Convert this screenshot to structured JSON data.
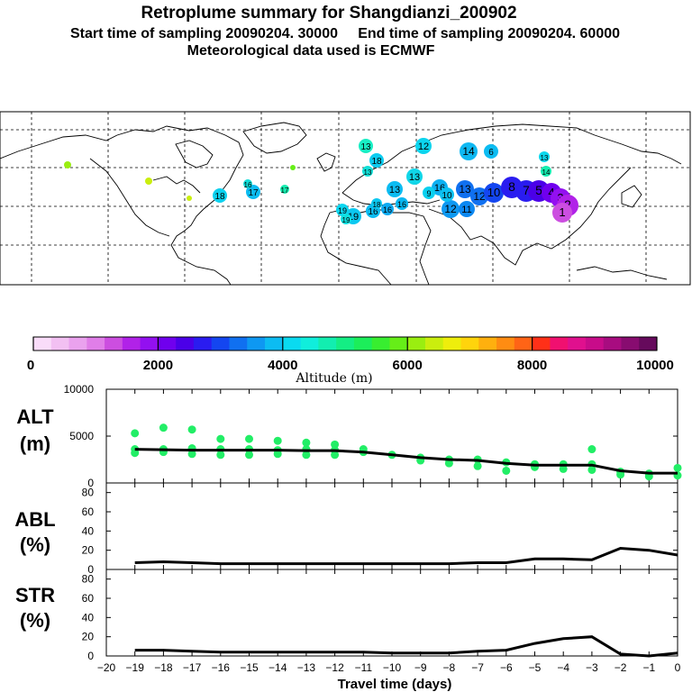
{
  "header": {
    "title": "Retroplume summary for Shangdianzi_200902",
    "line2": "Start time of sampling 20090204. 30000     End time of sampling 20090204. 60000",
    "line3": "Meteorological data used is ECMWF"
  },
  "colors": {
    "altitude_dot": "#22ee66",
    "line": "#000000",
    "colorbar": [
      "#f9dcf9",
      "#f2c0f2",
      "#eaa2ee",
      "#e07ee8",
      "#cc4ee0",
      "#b122e8",
      "#9310f0",
      "#7000ee",
      "#4b00e8",
      "#2a1cf0",
      "#1446f0",
      "#1070f0",
      "#0e98f2",
      "#0cbcf2",
      "#0adaf0",
      "#10eedc",
      "#12eeb0",
      "#14ee84",
      "#1cee5a",
      "#38ee30",
      "#66ee18",
      "#9aee10",
      "#caee0e",
      "#eeee0c",
      "#ffd40c",
      "#ffb00e",
      "#ff8c12",
      "#ff6416",
      "#ff3018",
      "#f01070",
      "#e0108e",
      "#c80c8a",
      "#a80c80",
      "#880c70",
      "#660a5c"
    ]
  },
  "colorbar": {
    "ticks": [
      "0",
      "2000",
      "4000",
      "6000",
      "8000",
      "10000"
    ],
    "label": "Altitude (m)"
  },
  "map": {
    "labels": [
      "13",
      "12",
      "14",
      "6",
      "18",
      "13",
      "17",
      "17",
      "16",
      "18",
      "13",
      "19",
      "16",
      "16",
      "13",
      "16",
      "12",
      "11",
      "13",
      "12",
      "10",
      "8",
      "7",
      "5",
      "4",
      "3",
      "2",
      "1",
      "10",
      "9",
      "19",
      "19",
      "18",
      "16",
      "14",
      "13"
    ]
  },
  "chart_data": [
    {
      "type": "scatter",
      "name": "ALT",
      "panel_label": "ALT",
      "panel_unit": "(m)",
      "ylim": [
        0,
        10000
      ],
      "yticks": [
        "0",
        "5000",
        "10000"
      ],
      "x": [
        -19,
        -18,
        -17,
        -16,
        -15,
        -14,
        -13,
        -12,
        -11,
        -10,
        -9,
        -8,
        -7,
        -6,
        -5,
        -4,
        -3,
        -2,
        -1,
        0
      ],
      "line": [
        3600,
        3550,
        3500,
        3500,
        3500,
        3500,
        3450,
        3450,
        3300,
        3000,
        2700,
        2500,
        2400,
        2100,
        1900,
        1900,
        1900,
        1300,
        1050,
        1050
      ],
      "points": [
        {
          "x": -19,
          "y": 5300
        },
        {
          "x": -19,
          "y": 3600
        },
        {
          "x": -19,
          "y": 3200
        },
        {
          "x": -18,
          "y": 5900
        },
        {
          "x": -18,
          "y": 3600
        },
        {
          "x": -18,
          "y": 3300
        },
        {
          "x": -17,
          "y": 5700
        },
        {
          "x": -17,
          "y": 3700
        },
        {
          "x": -17,
          "y": 3100
        },
        {
          "x": -16,
          "y": 4700
        },
        {
          "x": -16,
          "y": 3600
        },
        {
          "x": -16,
          "y": 3000
        },
        {
          "x": -15,
          "y": 4700
        },
        {
          "x": -15,
          "y": 3600
        },
        {
          "x": -15,
          "y": 3000
        },
        {
          "x": -14,
          "y": 4500
        },
        {
          "x": -14,
          "y": 3500
        },
        {
          "x": -14,
          "y": 3100
        },
        {
          "x": -13,
          "y": 4300
        },
        {
          "x": -13,
          "y": 3600
        },
        {
          "x": -13,
          "y": 3000
        },
        {
          "x": -12,
          "y": 4100
        },
        {
          "x": -12,
          "y": 3500
        },
        {
          "x": -12,
          "y": 3000
        },
        {
          "x": -11,
          "y": 3300
        },
        {
          "x": -11,
          "y": 3600
        },
        {
          "x": -10,
          "y": 3000
        },
        {
          "x": -9,
          "y": 2700
        },
        {
          "x": -9,
          "y": 2400
        },
        {
          "x": -8,
          "y": 2500
        },
        {
          "x": -8,
          "y": 2100
        },
        {
          "x": -7,
          "y": 2500
        },
        {
          "x": -7,
          "y": 1800
        },
        {
          "x": -6,
          "y": 2200
        },
        {
          "x": -6,
          "y": 1300
        },
        {
          "x": -5,
          "y": 2000
        },
        {
          "x": -5,
          "y": 1700
        },
        {
          "x": -4,
          "y": 2000
        },
        {
          "x": -4,
          "y": 1500
        },
        {
          "x": -3,
          "y": 3600
        },
        {
          "x": -3,
          "y": 2000
        },
        {
          "x": -3,
          "y": 1400
        },
        {
          "x": -2,
          "y": 1200
        },
        {
          "x": -2,
          "y": 900
        },
        {
          "x": -1,
          "y": 1000
        },
        {
          "x": -1,
          "y": 700
        },
        {
          "x": 0,
          "y": 1600
        },
        {
          "x": 0,
          "y": 800
        }
      ]
    },
    {
      "type": "line",
      "name": "ABL",
      "panel_label": "ABL",
      "panel_unit": "(%)",
      "ylim": [
        0,
        90
      ],
      "yticks": [
        "0",
        "20",
        "40",
        "60",
        "80"
      ],
      "x": [
        -19,
        -18,
        -17,
        -16,
        -15,
        -14,
        -13,
        -12,
        -11,
        -10,
        -9,
        -8,
        -7,
        -6,
        -5,
        -4,
        -3,
        -2,
        -1,
        0
      ],
      "values": [
        7,
        8,
        7,
        6,
        6,
        6,
        6,
        6,
        6,
        6,
        6,
        6,
        7,
        7,
        11,
        11,
        10,
        22,
        20,
        15
      ]
    },
    {
      "type": "line",
      "name": "STR",
      "panel_label": "STR",
      "panel_unit": "(%)",
      "ylim": [
        0,
        90
      ],
      "yticks": [
        "0",
        "20",
        "40",
        "60",
        "80"
      ],
      "x": [
        -19,
        -18,
        -17,
        -16,
        -15,
        -14,
        -13,
        -12,
        -11,
        -10,
        -9,
        -8,
        -7,
        -6,
        -5,
        -4,
        -3,
        -2,
        -1,
        0
      ],
      "values": [
        6,
        6,
        5,
        4,
        4,
        4,
        4,
        4,
        4,
        3,
        3,
        3,
        5,
        6,
        13,
        18,
        20,
        2,
        0,
        3
      ],
      "xlabel": "Travel time (days)",
      "xticks": [
        "−20",
        "−19",
        "−18",
        "−17",
        "−16",
        "−15",
        "−14",
        "−13",
        "−12",
        "−11",
        "−10",
        "−9",
        "−8",
        "−7",
        "−6",
        "−5",
        "−4",
        "−3",
        "−2",
        "−1",
        "0"
      ]
    }
  ]
}
